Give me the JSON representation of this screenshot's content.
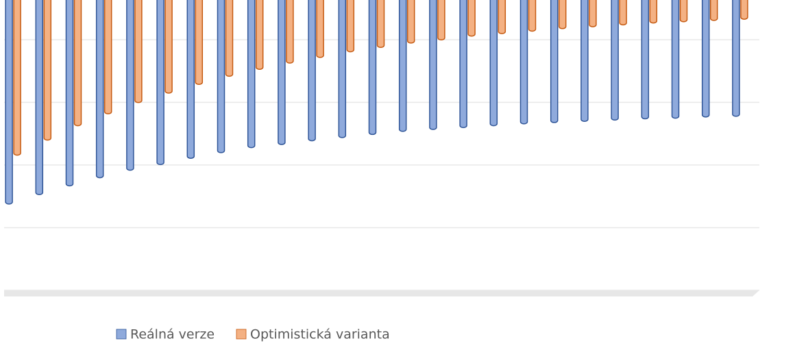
{
  "chart_data": {
    "type": "bar",
    "categories": [
      null,
      null,
      null,
      null,
      null,
      null,
      null,
      null,
      null,
      null,
      null,
      null,
      null,
      null,
      null,
      null,
      null,
      null,
      null,
      null,
      null,
      null,
      null,
      null,
      null
    ],
    "series": [
      {
        "name": "Reálná verze",
        "color": "#8faadc",
        "edge": "#2f5597",
        "values": [
          1.41,
          1.56,
          1.7,
          1.83,
          1.95,
          2.04,
          2.14,
          2.23,
          2.31,
          2.36,
          2.42,
          2.47,
          2.52,
          2.57,
          2.6,
          2.63,
          2.66,
          2.69,
          2.71,
          2.73,
          2.75,
          2.77,
          2.78,
          2.8,
          2.81
        ]
      },
      {
        "name": "Optimistická varianta",
        "color": "#f4b183",
        "edge": "#c55a11",
        "values": [
          2.19,
          2.43,
          2.66,
          2.85,
          3.03,
          3.18,
          3.32,
          3.45,
          3.56,
          3.66,
          3.75,
          3.84,
          3.91,
          3.98,
          4.03,
          4.09,
          4.13,
          4.17,
          4.21,
          4.24,
          4.27,
          4.3,
          4.32,
          4.34,
          4.36
        ]
      }
    ],
    "ylim": [
      0,
      4.55
    ],
    "yticks": [
      0,
      1,
      2,
      3,
      4
    ],
    "grid": true,
    "legend": "bottom"
  }
}
